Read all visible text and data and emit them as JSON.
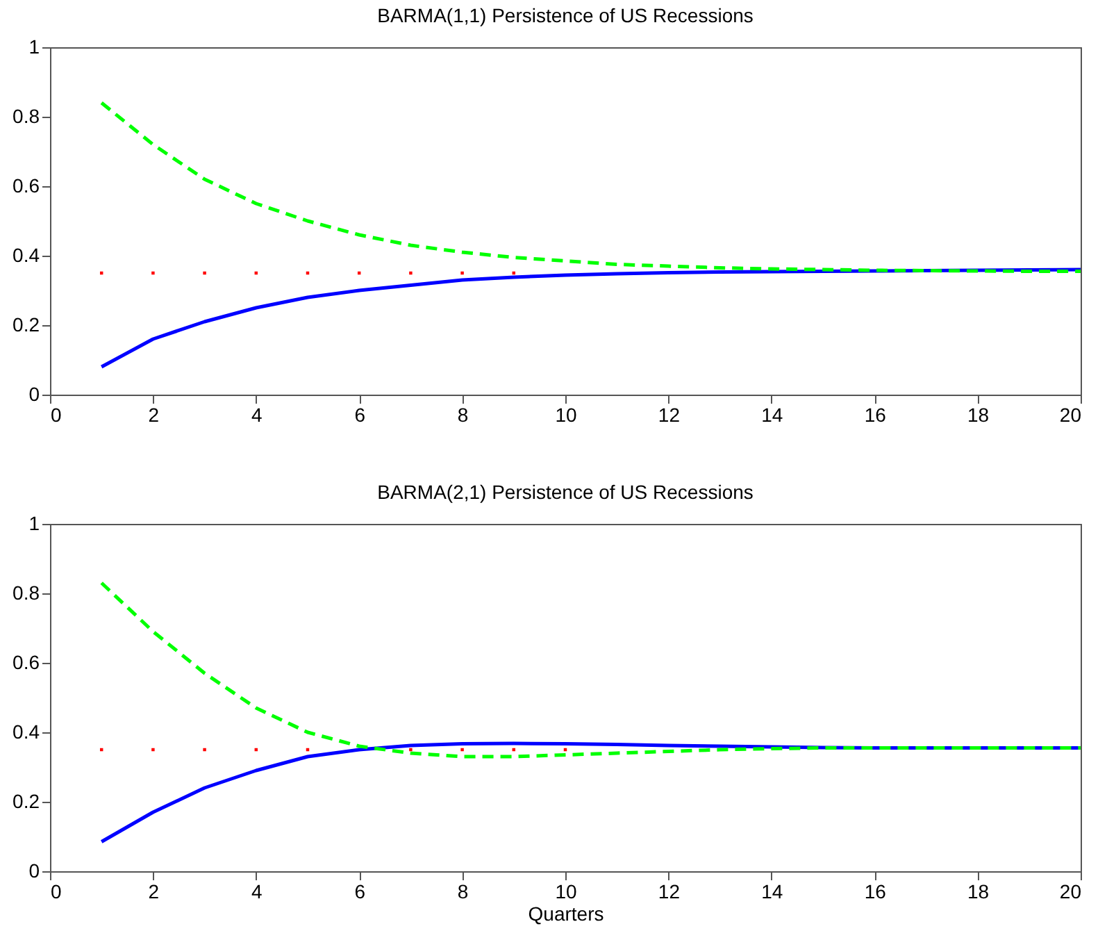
{
  "chart_data": [
    {
      "type": "line",
      "title": "BARMA(1,1) Persistence of US Recessions",
      "x": [
        1,
        2,
        3,
        4,
        5,
        6,
        7,
        8,
        9,
        10,
        11,
        12,
        13,
        14,
        15,
        16,
        17,
        18,
        19,
        20
      ],
      "series": [
        {
          "color": "#0000ff",
          "line_style": "solid",
          "values": [
            0.08,
            0.16,
            0.21,
            0.25,
            0.28,
            0.3,
            0.315,
            0.33,
            0.338,
            0.344,
            0.348,
            0.351,
            0.353,
            0.354,
            0.355,
            0.356,
            0.357,
            0.358,
            0.359,
            0.36
          ]
        },
        {
          "color": "#00ff00",
          "line_style": "dashed",
          "values": [
            0.84,
            0.72,
            0.62,
            0.55,
            0.5,
            0.46,
            0.43,
            0.41,
            0.395,
            0.385,
            0.375,
            0.37,
            0.365,
            0.362,
            0.36,
            0.358,
            0.357,
            0.356,
            0.355,
            0.355
          ]
        },
        {
          "color": "#ff0000",
          "type": "scatter",
          "marker": "square",
          "values": [
            0.35,
            0.35,
            0.35,
            0.35,
            0.35,
            0.35,
            0.35,
            0.35,
            0.35,
            null,
            null,
            null,
            null,
            null,
            null,
            null,
            null,
            null,
            null,
            null
          ]
        }
      ],
      "xlim": [
        0,
        20
      ],
      "xticks": [
        0,
        2,
        4,
        6,
        8,
        10,
        12,
        14,
        16,
        18,
        20
      ],
      "ylim": [
        0,
        1
      ],
      "yticks": [
        0,
        0.2,
        0.4,
        0.6,
        0.8,
        1
      ],
      "grid": false
    },
    {
      "type": "line",
      "title": "BARMA(2,1) Persistence of US Recessions",
      "xlabel": "Quarters",
      "x": [
        1,
        2,
        3,
        4,
        5,
        6,
        7,
        8,
        9,
        10,
        11,
        12,
        13,
        14,
        15,
        16,
        17,
        18,
        19,
        20
      ],
      "series": [
        {
          "color": "#0000ff",
          "line_style": "solid",
          "values": [
            0.085,
            0.17,
            0.24,
            0.29,
            0.33,
            0.35,
            0.362,
            0.367,
            0.368,
            0.367,
            0.365,
            0.362,
            0.36,
            0.358,
            0.356,
            0.355,
            0.355,
            0.355,
            0.355,
            0.355
          ]
        },
        {
          "color": "#00ff00",
          "line_style": "dashed",
          "values": [
            0.83,
            0.69,
            0.57,
            0.47,
            0.4,
            0.36,
            0.34,
            0.33,
            0.33,
            0.335,
            0.34,
            0.345,
            0.35,
            0.353,
            0.355,
            0.355,
            0.355,
            0.355,
            0.355,
            0.355
          ]
        },
        {
          "color": "#ff0000",
          "type": "scatter",
          "marker": "square",
          "values": [
            0.35,
            0.35,
            0.35,
            0.35,
            0.35,
            null,
            0.35,
            0.35,
            0.35,
            0.35,
            null,
            null,
            null,
            null,
            null,
            null,
            null,
            null,
            null,
            null
          ]
        }
      ],
      "xlim": [
        0,
        20
      ],
      "xticks": [
        0,
        2,
        4,
        6,
        8,
        10,
        12,
        14,
        16,
        18,
        20
      ],
      "ylim": [
        0,
        1
      ],
      "yticks": [
        0,
        0.2,
        0.4,
        0.6,
        0.8,
        1
      ],
      "grid": false
    }
  ]
}
